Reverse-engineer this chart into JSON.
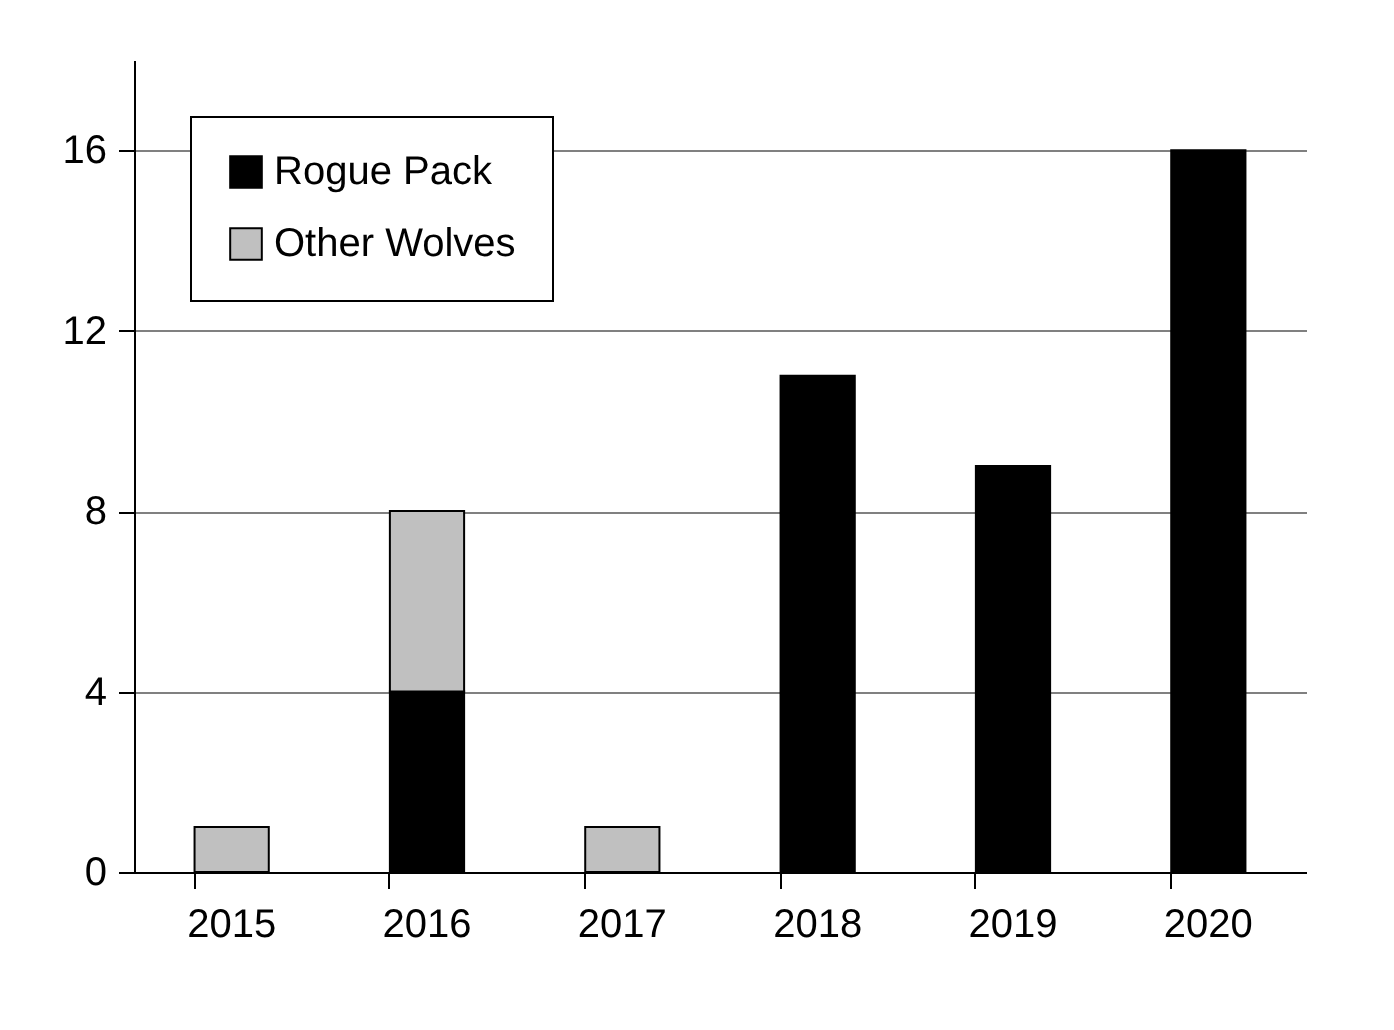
{
  "chart_data": {
    "type": "bar",
    "stacked": true,
    "categories": [
      "2015",
      "2016",
      "2017",
      "2018",
      "2019",
      "2020"
    ],
    "series": [
      {
        "name": "Rogue Pack",
        "color": "#000000",
        "values": [
          0,
          4,
          0,
          11,
          9,
          16
        ]
      },
      {
        "name": "Other Wolves",
        "color": "#c0c0c0",
        "values": [
          1,
          4,
          1,
          0,
          0,
          0
        ]
      }
    ],
    "ylim": [
      0,
      18
    ],
    "yticks": [
      0,
      4,
      8,
      12,
      16
    ],
    "grid": "y",
    "legend": "top left"
  }
}
